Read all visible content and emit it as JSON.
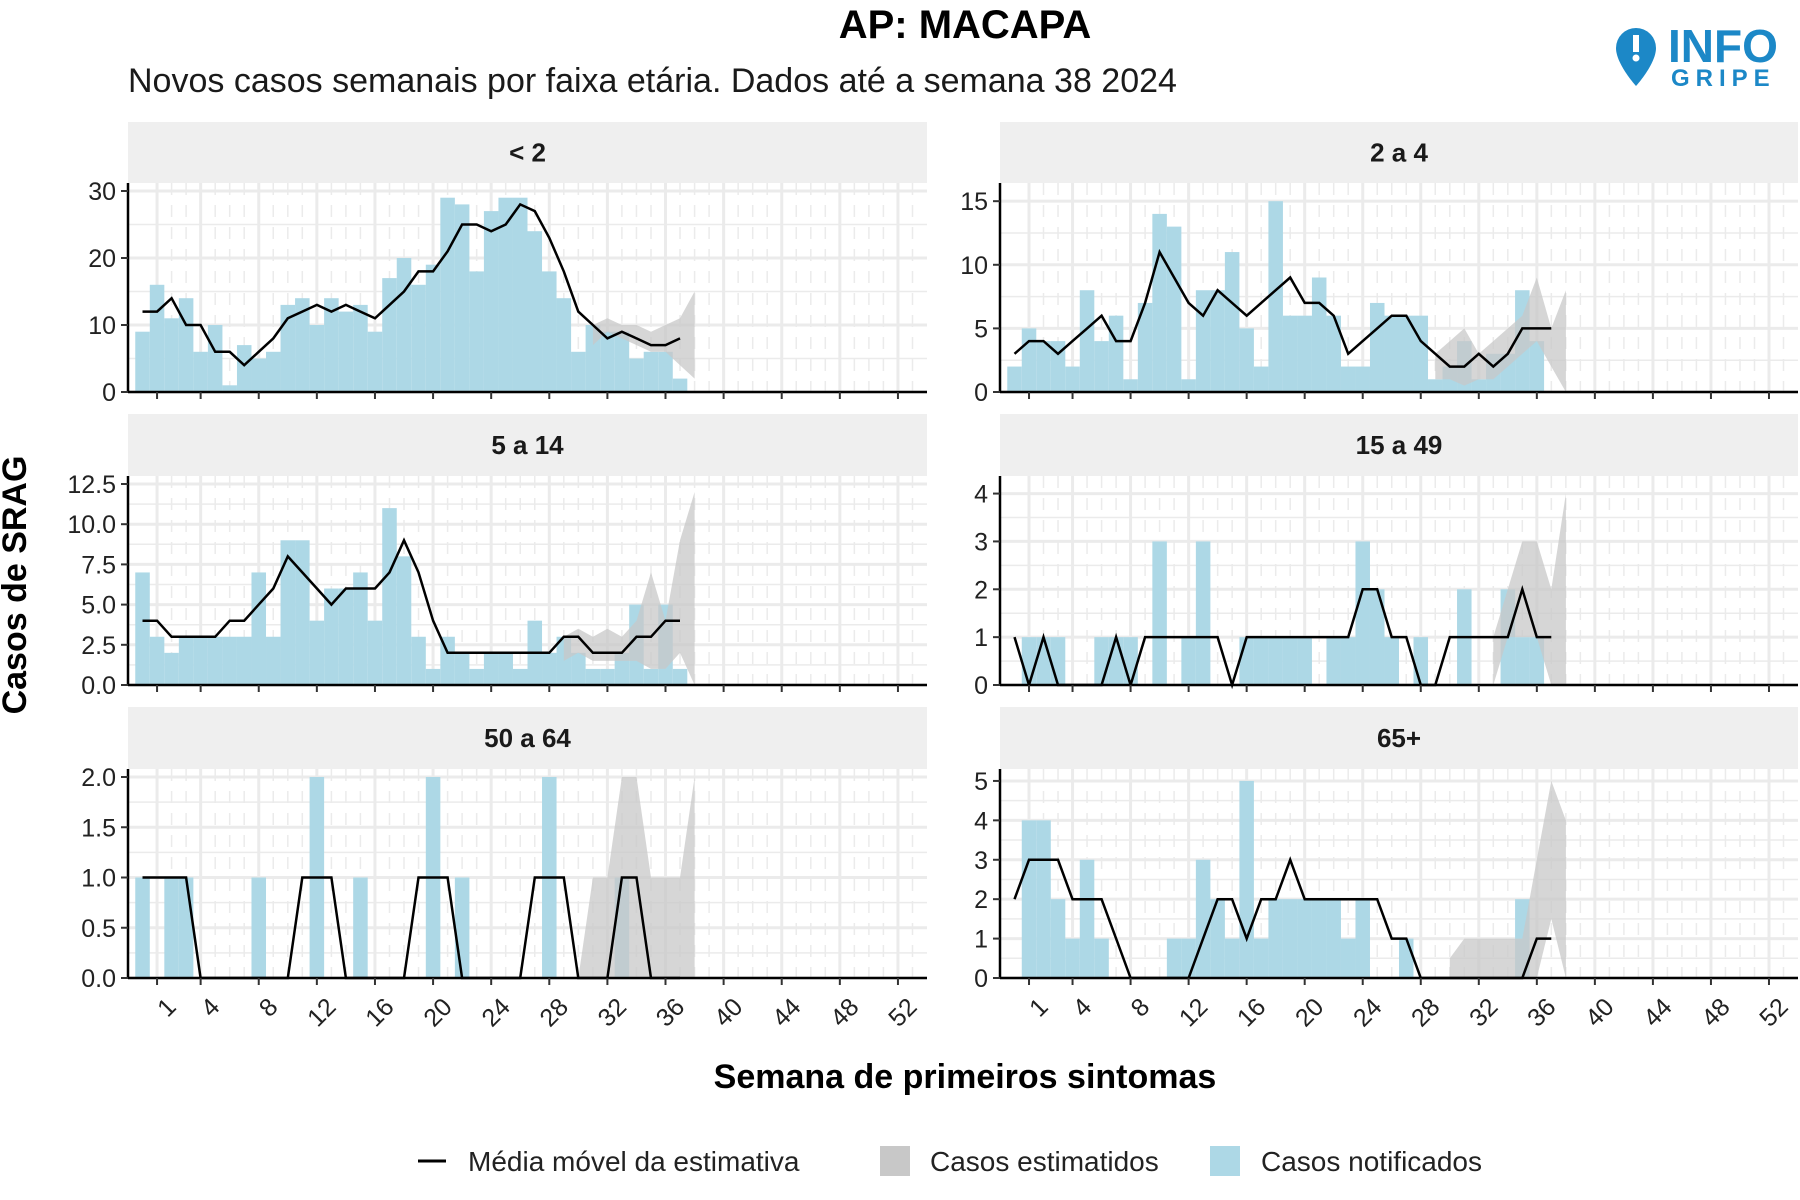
{
  "title": "AP: MACAPA",
  "subtitle": "Novos casos semanais por faixa etária. Dados até a semana 38 2024",
  "logo": {
    "line1": "INFO",
    "line2": "GRIPE",
    "icon": "map-pin-info-icon",
    "color": "#1c88c7"
  },
  "colors": {
    "notified": "#add8e6",
    "estimated": "#c8c8c8",
    "moving_avg": "#000000",
    "strip": "#efefef",
    "grid": "#ebebeb"
  },
  "legend": [
    {
      "label": "Média móvel da estimativa",
      "key": "line"
    },
    {
      "label": "Casos estimatidos",
      "key": "estimated"
    },
    {
      "label": "Casos notificados",
      "key": "notified"
    }
  ],
  "chart_data": {
    "type": "bar",
    "xlabel": "Semana de primeiros sintomas",
    "ylabel": "Casos de SRAG",
    "xlim": [
      -1,
      54
    ],
    "x_ticks": [
      1,
      4,
      8,
      12,
      16,
      20,
      24,
      28,
      32,
      36,
      40,
      44,
      48,
      52
    ],
    "facets": [
      {
        "label": "< 2",
        "ylim": [
          0,
          30
        ],
        "yticks": [
          0,
          10,
          20,
          30
        ],
        "ytick_labels": [
          "0",
          "10",
          "20",
          "30"
        ],
        "notified": [
          9,
          16,
          11,
          14,
          6,
          10,
          1,
          7,
          5,
          6,
          13,
          14,
          10,
          14,
          12,
          13,
          9,
          17,
          20,
          16,
          19,
          29,
          28,
          18,
          27,
          29,
          29,
          24,
          18,
          14,
          6,
          10,
          9,
          9,
          5,
          6,
          6,
          2
        ],
        "estimated": {
          "x": [
            31,
            32,
            33,
            34,
            35,
            36,
            37,
            38
          ],
          "low": [
            7,
            9,
            8,
            7,
            6,
            6,
            4,
            2
          ],
          "high": [
            10,
            11,
            10,
            10,
            9,
            10,
            11,
            15
          ]
        },
        "moving_avg": [
          12,
          12,
          14,
          10,
          10,
          6,
          6,
          4,
          6,
          8,
          11,
          12,
          13,
          12,
          13,
          12,
          11,
          13,
          15,
          18,
          18,
          21,
          25,
          25,
          24,
          25,
          28,
          27,
          23,
          18,
          12,
          10,
          8,
          9,
          8,
          7,
          7,
          8
        ]
      },
      {
        "label": "2 a 4",
        "ylim": [
          0,
          15.8
        ],
        "yticks": [
          0,
          5,
          10,
          15
        ],
        "ytick_labels": [
          "0",
          "5",
          "10",
          "15"
        ],
        "notified": [
          2,
          5,
          4,
          4,
          2,
          8,
          4,
          6,
          1,
          7,
          14,
          13,
          1,
          8,
          8,
          11,
          5,
          2,
          15,
          6,
          6,
          9,
          6,
          2,
          2,
          7,
          6,
          6,
          6,
          1,
          2,
          4,
          1,
          3,
          3,
          8,
          4,
          0
        ],
        "estimated": {
          "x": [
            29,
            30,
            31,
            32,
            33,
            34,
            35,
            36,
            37,
            38
          ],
          "low": [
            1,
            1,
            0.5,
            1,
            1,
            2,
            3,
            4,
            2,
            0
          ],
          "high": [
            3,
            4,
            5,
            3,
            4,
            5,
            6,
            9,
            5,
            8
          ]
        },
        "moving_avg": [
          3,
          4,
          4,
          3,
          4,
          5,
          6,
          4,
          4,
          7,
          11,
          9,
          7,
          6,
          8,
          7,
          6,
          7,
          8,
          9,
          7,
          7,
          6,
          3,
          4,
          5,
          6,
          6,
          4,
          3,
          2,
          2,
          3,
          2,
          3,
          5,
          5,
          5
        ]
      },
      {
        "label": "5 a 14",
        "ylim": [
          0,
          12.5
        ],
        "yticks": [
          0,
          2.5,
          5,
          7.5,
          10,
          12.5
        ],
        "ytick_labels": [
          "0.0",
          "2.5",
          "5.0",
          "7.5",
          "10.0",
          "12.5"
        ],
        "notified": [
          7,
          3,
          2,
          3,
          3,
          3,
          3,
          3,
          7,
          3,
          9,
          9,
          4,
          6,
          6,
          7,
          4,
          11,
          8,
          3,
          1,
          3,
          2,
          1,
          2,
          2,
          1,
          4,
          2,
          3,
          2,
          1,
          1,
          2,
          5,
          1,
          5,
          1
        ],
        "estimated": {
          "x": [
            29,
            30,
            31,
            32,
            33,
            34,
            35,
            36,
            37,
            38
          ],
          "low": [
            1.5,
            2,
            1.5,
            1.5,
            1.5,
            1.5,
            1,
            1,
            2,
            0
          ],
          "high": [
            3,
            3.5,
            3,
            3.5,
            3,
            4,
            7,
            4,
            9,
            12
          ]
        },
        "moving_avg": [
          4,
          4,
          3,
          3,
          3,
          3,
          4,
          4,
          5,
          6,
          8,
          7,
          6,
          5,
          6,
          6,
          6,
          7,
          9,
          7,
          4,
          2,
          2,
          2,
          2,
          2,
          2,
          2,
          2,
          3,
          3,
          2,
          2,
          2,
          3,
          3,
          4,
          4
        ]
      },
      {
        "label": "15 a 49",
        "ylim": [
          0,
          4.2
        ],
        "yticks": [
          0,
          1,
          2,
          3,
          4
        ],
        "ytick_labels": [
          "0",
          "1",
          "2",
          "3",
          "4"
        ],
        "notified": [
          0,
          1,
          1,
          1,
          0,
          0,
          1,
          1,
          1,
          0,
          3,
          0,
          1,
          3,
          0,
          0,
          1,
          1,
          1,
          1,
          1,
          0,
          1,
          1,
          3,
          2,
          1,
          0,
          1,
          0,
          0,
          2,
          0,
          0,
          2,
          1,
          1,
          0
        ],
        "estimated": {
          "x": [
            33,
            34,
            35,
            36,
            37,
            38
          ],
          "low": [
            0,
            1,
            1,
            1,
            0,
            0
          ],
          "high": [
            1,
            2,
            3,
            3,
            2,
            4
          ]
        },
        "moving_avg": [
          1,
          0,
          1,
          0,
          0,
          0,
          0,
          1,
          0,
          1,
          1,
          1,
          1,
          1,
          1,
          0,
          1,
          1,
          1,
          1,
          1,
          1,
          1,
          1,
          2,
          2,
          1,
          1,
          0,
          0,
          1,
          1,
          1,
          1,
          1,
          2,
          1,
          1
        ]
      },
      {
        "label": "50 a 64",
        "ylim": [
          0,
          2.0
        ],
        "yticks": [
          0,
          0.5,
          1,
          1.5,
          2
        ],
        "ytick_labels": [
          "0.0",
          "0.5",
          "1.0",
          "1.5",
          "2.0"
        ],
        "notified": [
          1,
          0,
          1,
          1,
          0,
          0,
          0,
          0,
          1,
          0,
          0,
          0,
          2,
          0,
          0,
          1,
          0,
          0,
          0,
          0,
          2,
          0,
          1,
          0,
          0,
          0,
          0,
          0,
          2,
          0,
          0,
          0,
          0,
          1,
          0,
          0,
          0,
          0
        ],
        "estimated": {
          "x": [
            30,
            31,
            32,
            33,
            34,
            35,
            36,
            37,
            38
          ],
          "low": [
            0,
            0,
            0,
            0,
            0,
            0,
            0,
            0,
            0
          ],
          "high": [
            0,
            1,
            1,
            2,
            2,
            1,
            1,
            1,
            2
          ]
        },
        "moving_avg": [
          1,
          1,
          1,
          1,
          0,
          0,
          0,
          0,
          0,
          0,
          0,
          1,
          1,
          1,
          0,
          0,
          0,
          0,
          0,
          1,
          1,
          1,
          0,
          0,
          0,
          0,
          0,
          1,
          1,
          1,
          0,
          0,
          0,
          1,
          1,
          0,
          0,
          0
        ]
      },
      {
        "label": "65+",
        "ylim": [
          0,
          5.1
        ],
        "yticks": [
          0,
          1,
          2,
          3,
          4,
          5
        ],
        "ytick_labels": [
          "0",
          "1",
          "2",
          "3",
          "4",
          "5"
        ],
        "notified": [
          0,
          4,
          4,
          2,
          1,
          3,
          1,
          0,
          0,
          0,
          0,
          1,
          1,
          3,
          2,
          1,
          5,
          1,
          2,
          2,
          2,
          2,
          2,
          1,
          2,
          0,
          0,
          1,
          0,
          0,
          0,
          0,
          0,
          0,
          0,
          2,
          0,
          0
        ],
        "estimated": {
          "x": [
            30,
            31,
            32,
            33,
            34,
            35,
            36,
            37,
            38
          ],
          "low": [
            0,
            0,
            0,
            0,
            0,
            0,
            0,
            1.5,
            0
          ],
          "high": [
            0.5,
            1,
            1,
            1,
            1,
            1,
            3,
            5,
            4
          ]
        },
        "moving_avg": [
          2,
          3,
          3,
          3,
          2,
          2,
          2,
          1,
          0,
          0,
          0,
          0,
          0,
          1,
          2,
          2,
          1,
          2,
          2,
          3,
          2,
          2,
          2,
          2,
          2,
          2,
          1,
          1,
          0,
          0,
          0,
          0,
          0,
          0,
          0,
          0,
          1,
          1
        ]
      }
    ]
  }
}
